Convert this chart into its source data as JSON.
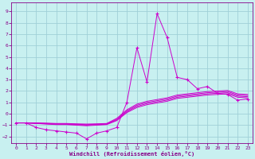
{
  "title": "",
  "xlabel": "Windchill (Refroidissement éolien,°C)",
  "ylabel": "",
  "background_color": "#c8f0f0",
  "grid_color": "#a0d0d8",
  "line_color": "#cc00cc",
  "xlim": [
    -0.5,
    23.5
  ],
  "ylim": [
    -2.6,
    9.8
  ],
  "xticks": [
    0,
    1,
    2,
    3,
    4,
    5,
    6,
    7,
    8,
    9,
    10,
    11,
    12,
    13,
    14,
    15,
    16,
    17,
    18,
    19,
    20,
    21,
    22,
    23
  ],
  "yticks": [
    -2,
    -1,
    0,
    1,
    2,
    3,
    4,
    5,
    6,
    7,
    8,
    9
  ],
  "series": [
    {
      "x": [
        0,
        1,
        2,
        3,
        4,
        5,
        6,
        7,
        8,
        9,
        10,
        11,
        12,
        13,
        14,
        15,
        16,
        17,
        18,
        19,
        20,
        21,
        22,
        23
      ],
      "y": [
        -0.8,
        -0.8,
        -1.2,
        -1.4,
        -1.5,
        -1.6,
        -1.7,
        -2.2,
        -1.7,
        -1.5,
        -1.2,
        1.0,
        5.8,
        2.8,
        8.8,
        6.7,
        3.2,
        3.0,
        2.2,
        2.4,
        1.8,
        1.7,
        1.2,
        1.3
      ],
      "marker": "+"
    },
    {
      "x": [
        0,
        1,
        2,
        3,
        4,
        5,
        6,
        7,
        8,
        9,
        10,
        11,
        12,
        13,
        14,
        15,
        16,
        17,
        18,
        19,
        20,
        21,
        22,
        23
      ],
      "y": [
        -0.8,
        -0.8,
        -0.85,
        -0.9,
        -0.95,
        -0.95,
        -1.0,
        -1.05,
        -1.0,
        -0.95,
        -0.6,
        0.1,
        0.55,
        0.8,
        0.95,
        1.1,
        1.35,
        1.45,
        1.55,
        1.65,
        1.7,
        1.75,
        1.45,
        1.4
      ],
      "marker": null
    },
    {
      "x": [
        0,
        1,
        2,
        3,
        4,
        5,
        6,
        7,
        8,
        9,
        10,
        11,
        12,
        13,
        14,
        15,
        16,
        17,
        18,
        19,
        20,
        21,
        22,
        23
      ],
      "y": [
        -0.8,
        -0.8,
        -0.85,
        -0.88,
        -0.92,
        -0.92,
        -0.96,
        -1.0,
        -0.96,
        -0.92,
        -0.55,
        0.18,
        0.65,
        0.9,
        1.05,
        1.2,
        1.45,
        1.55,
        1.65,
        1.75,
        1.8,
        1.85,
        1.55,
        1.5
      ],
      "marker": null
    },
    {
      "x": [
        0,
        1,
        2,
        3,
        4,
        5,
        6,
        7,
        8,
        9,
        10,
        11,
        12,
        13,
        14,
        15,
        16,
        17,
        18,
        19,
        20,
        21,
        22,
        23
      ],
      "y": [
        -0.8,
        -0.8,
        -0.82,
        -0.85,
        -0.88,
        -0.88,
        -0.92,
        -0.95,
        -0.92,
        -0.88,
        -0.48,
        0.26,
        0.75,
        1.0,
        1.15,
        1.3,
        1.55,
        1.65,
        1.75,
        1.85,
        1.9,
        1.95,
        1.65,
        1.6
      ],
      "marker": null
    },
    {
      "x": [
        0,
        1,
        2,
        3,
        4,
        5,
        6,
        7,
        8,
        9,
        10,
        11,
        12,
        13,
        14,
        15,
        16,
        17,
        18,
        19,
        20,
        21,
        22,
        23
      ],
      "y": [
        -0.8,
        -0.8,
        -0.8,
        -0.82,
        -0.85,
        -0.85,
        -0.88,
        -0.9,
        -0.88,
        -0.85,
        -0.4,
        0.35,
        0.85,
        1.1,
        1.25,
        1.4,
        1.65,
        1.75,
        1.85,
        1.95,
        2.0,
        2.05,
        1.75,
        1.7
      ],
      "marker": null
    }
  ]
}
